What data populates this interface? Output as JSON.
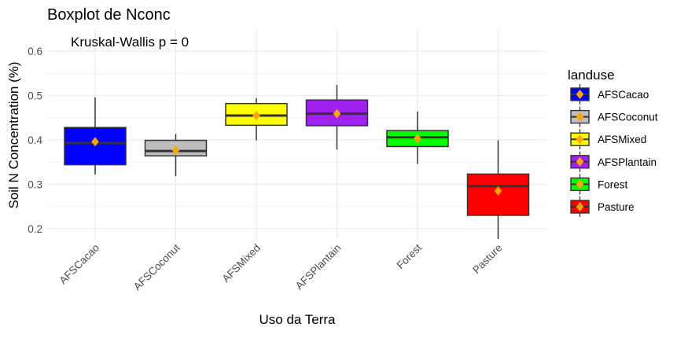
{
  "chart_data": {
    "type": "boxplot",
    "title": "Boxplot de Nconc",
    "annotation": "Kruskal-Wallis p = 0",
    "xlabel": "Uso da Terra",
    "ylabel": "Soil N Concentration (%)",
    "ylim": [
      0.175,
      0.648
    ],
    "yticks": [
      0.2,
      0.3,
      0.4,
      0.5,
      0.6
    ],
    "ytick_labels": [
      "0.2",
      "0.3",
      "0.4",
      "0.5",
      "0.6"
    ],
    "grid": true,
    "legend_title": "landuse",
    "legend_position": "right",
    "mean_marker_color": "#FFA500",
    "categories": [
      "AFSCacao",
      "AFSCoconut",
      "AFSMixed",
      "AFSPlantain",
      "Forest",
      "Pasture"
    ],
    "boxes": [
      {
        "name": "AFSCacao",
        "color": "#0000FF",
        "whisker_low": 0.322,
        "q1": 0.344,
        "median": 0.393,
        "q3": 0.428,
        "whisker_high": 0.496,
        "mean": 0.396
      },
      {
        "name": "AFSCoconut",
        "color": "#BEBEBE",
        "whisker_low": 0.318,
        "q1": 0.364,
        "median": 0.375,
        "q3": 0.399,
        "whisker_high": 0.413,
        "mean": 0.377
      },
      {
        "name": "AFSMixed",
        "color": "#FFFF00",
        "whisker_low": 0.399,
        "q1": 0.433,
        "median": 0.455,
        "q3": 0.482,
        "whisker_high": 0.494,
        "mean": 0.455
      },
      {
        "name": "AFSPlantain",
        "color": "#A020F0",
        "whisker_low": 0.378,
        "q1": 0.432,
        "median": 0.459,
        "q3": 0.49,
        "whisker_high": 0.524,
        "mean": 0.459
      },
      {
        "name": "Forest",
        "color": "#00FF00",
        "whisker_low": 0.346,
        "q1": 0.385,
        "median": 0.406,
        "q3": 0.421,
        "whisker_high": 0.464,
        "mean": 0.403
      },
      {
        "name": "Pasture",
        "color": "#FF0000",
        "whisker_low": 0.177,
        "q1": 0.23,
        "median": 0.296,
        "q3": 0.323,
        "whisker_high": 0.399,
        "mean": 0.285
      }
    ]
  }
}
